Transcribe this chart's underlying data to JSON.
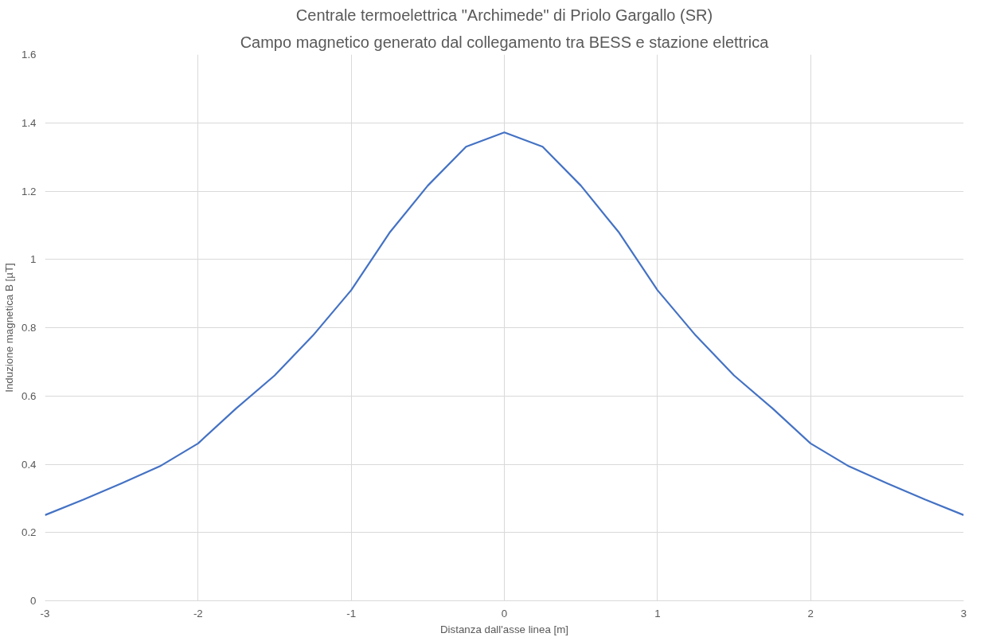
{
  "chart_data": {
    "type": "line",
    "title": "Centrale termoelettrica \"Archimede\" di Priolo Gargallo (SR)",
    "subtitle": "Campo magnetico generato dal collegamento tra BESS e stazione elettrica",
    "xlabel": "Distanza dall'asse linea [m]",
    "ylabel": "Induzione magnetica B [µT]",
    "x": [
      -3,
      -2.75,
      -2.5,
      -2.25,
      -2,
      -1.75,
      -1.5,
      -1.25,
      -1,
      -0.75,
      -0.5,
      -0.25,
      0,
      0.25,
      0.5,
      0.75,
      1,
      1.25,
      1.5,
      1.75,
      2,
      2.25,
      2.5,
      2.75,
      3
    ],
    "series": [
      {
        "color": "#4472c4",
        "values": [
          0.251,
          0.296,
          0.344,
          0.394,
          0.461,
          0.564,
          0.66,
          0.777,
          0.91,
          1.078,
          1.216,
          1.33,
          1.372,
          1.33,
          1.216,
          1.078,
          0.91,
          0.777,
          0.66,
          0.564,
          0.461,
          0.394,
          0.344,
          0.296,
          0.251
        ]
      }
    ],
    "xlim": [
      -3,
      3
    ],
    "ylim": [
      0,
      1.6
    ],
    "xticks": [
      -3,
      -2,
      -1,
      0,
      1,
      2,
      3
    ],
    "yticks": [
      0,
      0.2,
      0.4,
      0.6,
      0.8,
      1,
      1.2,
      1.4,
      1.6
    ],
    "grid": true,
    "marker": "none",
    "line_style": "solid"
  }
}
